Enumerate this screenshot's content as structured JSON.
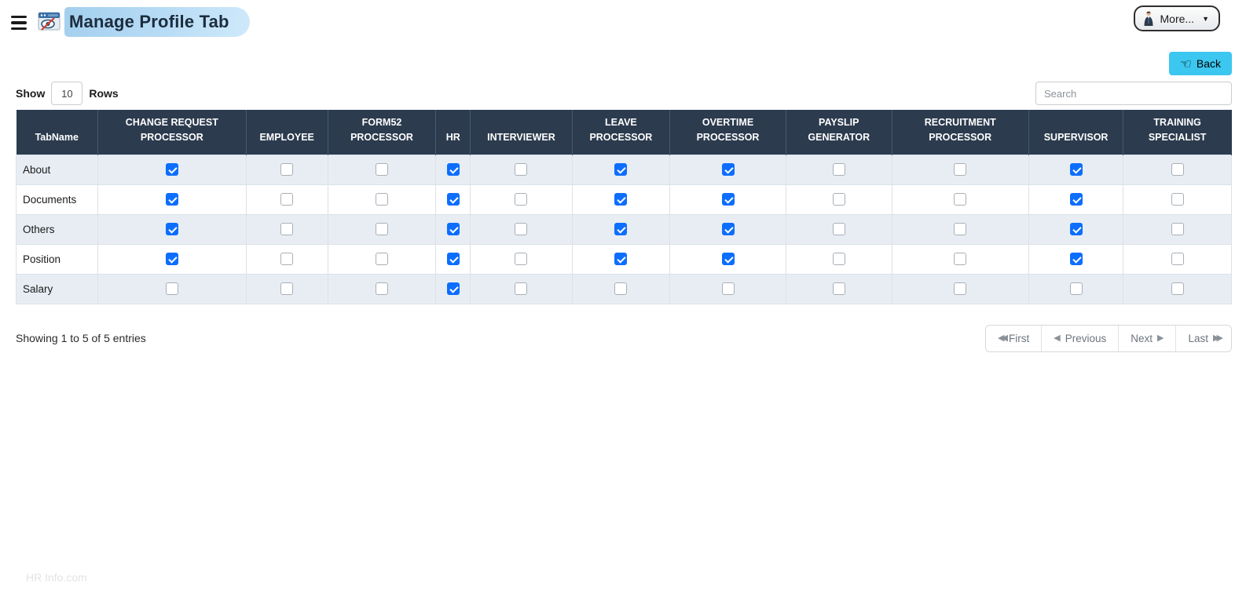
{
  "header": {
    "title": "Manage Profile Tab",
    "more_label": "More...",
    "icons": {
      "menu": "hamburger-icon",
      "app": "window-eye-hidden-icon",
      "more_user": "person-icon",
      "more_caret": "caret-down-icon"
    }
  },
  "toolbar": {
    "back_label": "Back",
    "back_icon": "hand-pointing-left-icon",
    "show_label": "Show",
    "rows_value": "10",
    "rows_label": "Rows",
    "search_placeholder": "Search"
  },
  "table": {
    "columns": [
      "TabName",
      "CHANGE REQUEST PROCESSOR",
      "EMPLOYEE",
      "FORM52 PROCESSOR",
      "HR",
      "INTERVIEWER",
      "LEAVE PROCESSOR",
      "OVERTIME PROCESSOR",
      "PAYSLIP GENERATOR",
      "RECRUITMENT PROCESSOR",
      "SUPERVISOR",
      "TRAINING SPECIALIST"
    ],
    "rows": [
      {
        "tab": "About",
        "checks": [
          true,
          false,
          false,
          true,
          false,
          true,
          true,
          false,
          false,
          true,
          false
        ]
      },
      {
        "tab": "Documents",
        "checks": [
          true,
          false,
          false,
          true,
          false,
          true,
          true,
          false,
          false,
          true,
          false
        ]
      },
      {
        "tab": "Others",
        "checks": [
          true,
          false,
          false,
          true,
          false,
          true,
          true,
          false,
          false,
          true,
          false
        ]
      },
      {
        "tab": "Position",
        "checks": [
          true,
          false,
          false,
          true,
          false,
          true,
          true,
          false,
          false,
          true,
          false
        ]
      },
      {
        "tab": "Salary",
        "checks": [
          false,
          false,
          false,
          true,
          false,
          false,
          false,
          false,
          false,
          false,
          false
        ]
      }
    ]
  },
  "footer": {
    "showing_text": "Showing 1 to 5 of 5 entries",
    "pagination": {
      "first": "First",
      "previous": "Previous",
      "next": "Next",
      "last": "Last",
      "icons": {
        "first": "double-chevron-left-icon",
        "previous": "chevron-left-icon",
        "next": "chevron-right-icon",
        "last": "double-chevron-right-icon"
      }
    }
  },
  "branding": {
    "footer_text": "HR Info.com"
  },
  "colors": {
    "table_header_bg": "#2c3b4e",
    "row_stripe_bg": "#e7edf3",
    "checkbox_checked": "#0d6efd",
    "back_button_bg": "#3cc7f0",
    "title_pill_bg": "#a3cfee"
  }
}
